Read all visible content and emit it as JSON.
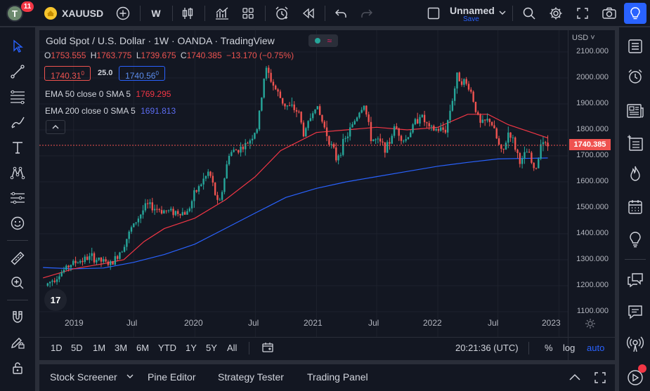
{
  "topbar": {
    "avatar_letter": "T",
    "notification_count": "11",
    "symbol": "XAUUSD",
    "interval": "W",
    "layout_name": "Unnamed",
    "layout_save": "Save"
  },
  "legend": {
    "title": "Gold Spot / U.S. Dollar · 1W · OANDA · TradingView",
    "open_label": "O",
    "open": "1753.555",
    "high_label": "H",
    "high": "1763.775",
    "low_label": "L",
    "low": "1739.675",
    "close_label": "C",
    "close": "1740.385",
    "change": "−13.170 (−0.75%)",
    "bid": "1740.31",
    "bid_sup": "0",
    "spread": "25.0",
    "ask": "1740.56",
    "ask_sup": "0",
    "ema50_label": "EMA 50 close 0 SMA 5",
    "ema50_value": "1769.295",
    "ema200_label": "EMA 200 close 0 SMA 5",
    "ema200_value": "1691.813"
  },
  "price_scale": {
    "currency": "USD",
    "last_price": "1740.385",
    "labels": [
      "2100.000",
      "2000.000",
      "1900.000",
      "1800.000",
      "1700.000",
      "1600.000",
      "1500.000",
      "1400.000",
      "1300.000",
      "1200.000",
      "1100.000"
    ]
  },
  "time_scale": {
    "labels": [
      "2019",
      "Jul",
      "2020",
      "Jul",
      "2021",
      "Jul",
      "2022",
      "Jul",
      "2023"
    ]
  },
  "timeframes": [
    "1D",
    "5D",
    "1M",
    "3M",
    "6M",
    "YTD",
    "1Y",
    "5Y",
    "All"
  ],
  "bottom_right": {
    "clock": "20:21:36 (UTC)",
    "percent": "%",
    "log": "log",
    "auto": "auto"
  },
  "bottom_tabs": [
    "Stock Screener",
    "Pine Editor",
    "Strategy Tester",
    "Trading Panel"
  ],
  "colors": {
    "up": "#26a69a",
    "down": "#ef5350",
    "ema50": "#f23645",
    "ema200": "#2962ff",
    "accent": "#2962ff",
    "background": "#131722"
  },
  "chart_data": {
    "type": "candlestick",
    "title": "Gold Spot / U.S. Dollar · 1W · OANDA · TradingView",
    "ylim": [
      1100,
      2100
    ],
    "xlim": [
      "2018-10",
      "2023-01"
    ],
    "anchors": [
      [
        "2018-10-15",
        1200
      ],
      [
        "2018-12-01",
        1250
      ],
      [
        "2019-01-01",
        1285
      ],
      [
        "2019-03-01",
        1310
      ],
      [
        "2019-05-01",
        1280
      ],
      [
        "2019-06-01",
        1340
      ],
      [
        "2019-07-01",
        1420
      ],
      [
        "2019-08-15",
        1510
      ],
      [
        "2019-10-01",
        1490
      ],
      [
        "2019-12-15",
        1480
      ],
      [
        "2020-01-10",
        1560
      ],
      [
        "2020-02-20",
        1640
      ],
      [
        "2020-03-20",
        1500
      ],
      [
        "2020-04-20",
        1710
      ],
      [
        "2020-06-10",
        1740
      ],
      [
        "2020-07-15",
        1810
      ],
      [
        "2020-08-07",
        2040
      ],
      [
        "2020-09-01",
        1970
      ],
      [
        "2020-10-01",
        1900
      ],
      [
        "2020-11-15",
        1870
      ],
      [
        "2020-12-01",
        1780
      ],
      [
        "2021-01-05",
        1900
      ],
      [
        "2021-03-08",
        1690
      ],
      [
        "2021-05-20",
        1880
      ],
      [
        "2021-06-01",
        1900
      ],
      [
        "2021-06-20",
        1770
      ],
      [
        "2021-08-09",
        1730
      ],
      [
        "2021-09-01",
        1815
      ],
      [
        "2021-09-30",
        1755
      ],
      [
        "2021-11-15",
        1860
      ],
      [
        "2021-12-15",
        1800
      ],
      [
        "2022-02-01",
        1800
      ],
      [
        "2022-03-08",
        2010
      ],
      [
        "2022-04-15",
        1960
      ],
      [
        "2022-05-15",
        1820
      ],
      [
        "2022-06-15",
        1840
      ],
      [
        "2022-07-21",
        1700
      ],
      [
        "2022-08-10",
        1800
      ],
      [
        "2022-09-15",
        1670
      ],
      [
        "2022-10-05",
        1720
      ],
      [
        "2022-10-25",
        1640
      ],
      [
        "2022-11-05",
        1670
      ],
      [
        "2022-11-15",
        1775
      ],
      [
        "2022-11-28",
        1740
      ]
    ],
    "ema50": [
      [
        "2018-10-01",
        1230
      ],
      [
        "2019-01-01",
        1265
      ],
      [
        "2019-04-01",
        1285
      ],
      [
        "2019-06-01",
        1300
      ],
      [
        "2019-08-01",
        1370
      ],
      [
        "2019-10-01",
        1420
      ],
      [
        "2020-01-01",
        1460
      ],
      [
        "2020-04-01",
        1530
      ],
      [
        "2020-07-01",
        1620
      ],
      [
        "2020-09-15",
        1720
      ],
      [
        "2021-01-01",
        1790
      ],
      [
        "2021-04-01",
        1800
      ],
      [
        "2021-07-01",
        1810
      ],
      [
        "2021-10-01",
        1800
      ],
      [
        "2022-01-01",
        1810
      ],
      [
        "2022-04-01",
        1860
      ],
      [
        "2022-06-01",
        1860
      ],
      [
        "2022-08-01",
        1820
      ],
      [
        "2022-11-28",
        1769
      ]
    ],
    "ema200": [
      [
        "2018-10-01",
        1270
      ],
      [
        "2019-01-01",
        1265
      ],
      [
        "2019-04-01",
        1268
      ],
      [
        "2019-07-01",
        1290
      ],
      [
        "2019-10-01",
        1320
      ],
      [
        "2020-01-01",
        1360
      ],
      [
        "2020-04-01",
        1420
      ],
      [
        "2020-07-01",
        1480
      ],
      [
        "2020-10-01",
        1540
      ],
      [
        "2021-01-01",
        1575
      ],
      [
        "2021-04-01",
        1600
      ],
      [
        "2021-07-01",
        1620
      ],
      [
        "2021-10-01",
        1640
      ],
      [
        "2022-01-01",
        1660
      ],
      [
        "2022-04-01",
        1675
      ],
      [
        "2022-07-01",
        1688
      ],
      [
        "2022-11-28",
        1692
      ]
    ],
    "last_price": 1740.385
  }
}
